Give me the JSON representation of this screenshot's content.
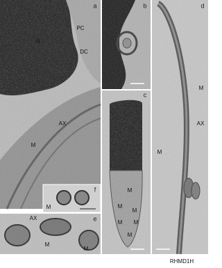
{
  "panels": [
    {
      "letter": "a",
      "labels": [
        "N",
        "PC",
        "DC",
        "AX",
        "M"
      ]
    },
    {
      "letter": "b",
      "labels": []
    },
    {
      "letter": "c",
      "labels": [
        "M",
        "M",
        "M",
        "M",
        "M",
        "M"
      ]
    },
    {
      "letter": "d",
      "labels": [
        "M",
        "AX",
        "M"
      ]
    },
    {
      "letter": "f",
      "labels": [
        "M"
      ]
    },
    {
      "letter": "e",
      "labels": [
        "AX",
        "M",
        "M"
      ]
    }
  ],
  "watermark": "RHMD1H"
}
